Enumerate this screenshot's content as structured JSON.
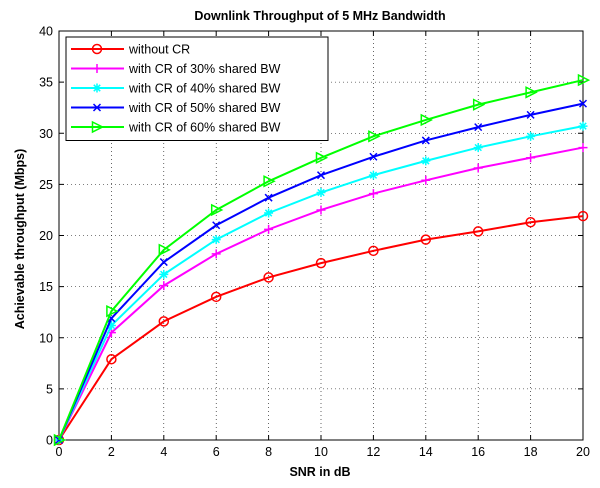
{
  "chart_data": {
    "type": "line",
    "title": "Downlink Throughput of 5 MHz Bandwidth",
    "xlabel": "SNR in dB",
    "ylabel": "Achievable throughput (Mbps)",
    "xlim": [
      0,
      20
    ],
    "ylim": [
      0,
      40
    ],
    "xticks": [
      "0",
      "2",
      "4",
      "6",
      "8",
      "10",
      "12",
      "14",
      "16",
      "18",
      "20"
    ],
    "yticks": [
      "0",
      "5",
      "10",
      "15",
      "20",
      "25",
      "30",
      "35",
      "40"
    ],
    "grid": true,
    "legend_position": "top-left",
    "x": [
      0,
      2,
      4,
      6,
      8,
      10,
      12,
      14,
      16,
      18,
      20
    ],
    "series": [
      {
        "name": "without CR",
        "color": "#ff0000",
        "marker": "circle",
        "values": [
          0,
          7.9,
          11.6,
          14.0,
          15.9,
          17.3,
          18.5,
          19.6,
          20.4,
          21.3,
          21.9
        ]
      },
      {
        "name": "with CR of 30% shared BW",
        "color": "#ff00ff",
        "marker": "plus",
        "values": [
          0,
          10.5,
          15.1,
          18.2,
          20.6,
          22.5,
          24.1,
          25.4,
          26.6,
          27.6,
          28.6
        ]
      },
      {
        "name": "with CR of 40% shared BW",
        "color": "#00ffff",
        "marker": "star",
        "values": [
          0,
          11.2,
          16.2,
          19.6,
          22.2,
          24.2,
          25.9,
          27.3,
          28.6,
          29.7,
          30.7
        ]
      },
      {
        "name": "with CR of 50% shared BW",
        "color": "#0000ff",
        "marker": "x",
        "values": [
          0,
          11.9,
          17.4,
          21.0,
          23.7,
          25.9,
          27.7,
          29.3,
          30.6,
          31.8,
          32.9
        ]
      },
      {
        "name": "with CR of 60% shared BW",
        "color": "#00ff00",
        "marker": "triangle-right",
        "values": [
          0,
          12.6,
          18.6,
          22.5,
          25.3,
          27.6,
          29.7,
          31.3,
          32.8,
          34.0,
          35.2
        ]
      }
    ]
  }
}
